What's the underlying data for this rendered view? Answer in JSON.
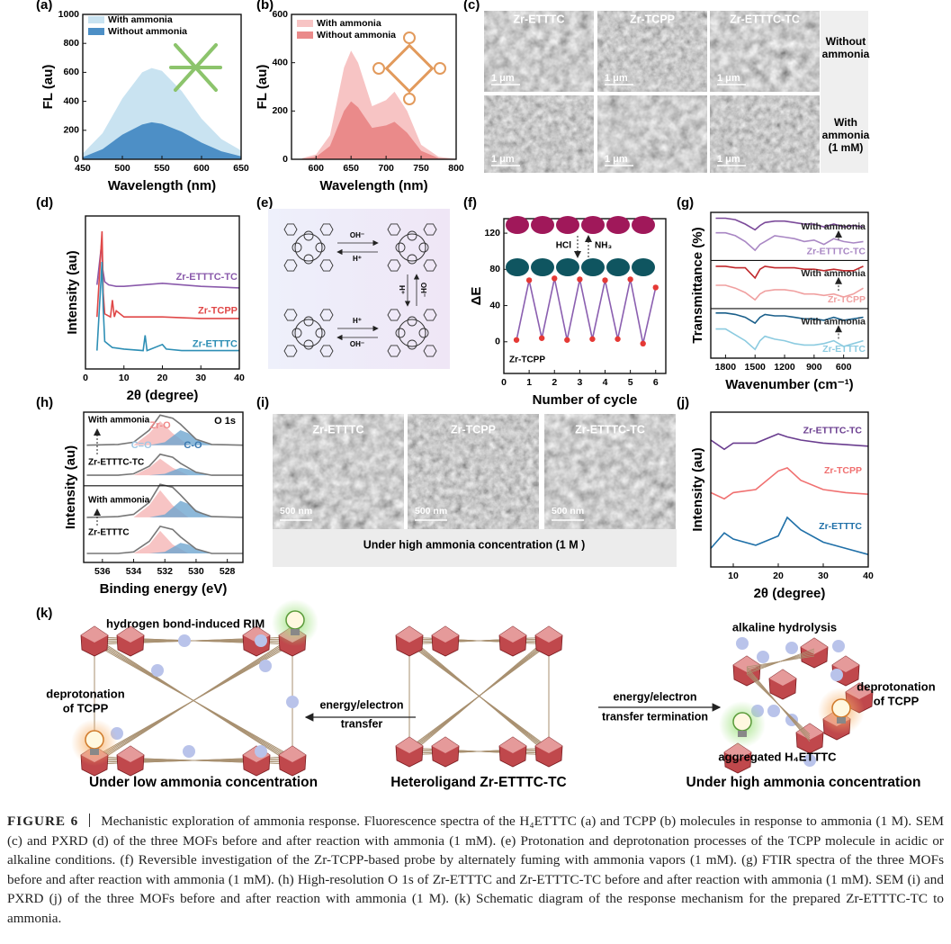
{
  "panel_labels": [
    "(a)",
    "(b)",
    "(c)",
    "(d)",
    "(e)",
    "(f)",
    "(g)",
    "(h)",
    "(i)",
    "(j)",
    "(k)"
  ],
  "chart_data": [
    {
      "type": "area",
      "xlabel": "Wavelength (nm)",
      "ylabel": "FL (au)",
      "legend": "upper left",
      "x": [
        450,
        475,
        500,
        525,
        537,
        550,
        575,
        600,
        625,
        650
      ],
      "xlim": [
        450,
        650
      ],
      "xticks": [
        450,
        500,
        550,
        600,
        650
      ],
      "ylim": [
        0,
        1000
      ],
      "yticks": [
        0,
        200,
        400,
        600,
        800,
        1000
      ],
      "series": [
        {
          "name": "With ammonia",
          "color": "#c9e3f1",
          "values": [
            40,
            180,
            420,
            600,
            630,
            610,
            470,
            280,
            140,
            60
          ]
        },
        {
          "name": "Without ammonia",
          "color": "#4d8fc6",
          "values": [
            15,
            70,
            170,
            240,
            255,
            245,
            190,
            115,
            55,
            20
          ]
        }
      ]
    },
    {
      "type": "area",
      "xlabel": "Wavelength (nm)",
      "ylabel": "FL (au)",
      "legend": "upper left",
      "x": [
        580,
        600,
        620,
        640,
        650,
        660,
        680,
        700,
        712,
        730,
        750,
        775,
        800
      ],
      "xlim": [
        565,
        800
      ],
      "xticks": [
        600,
        650,
        700,
        750,
        800
      ],
      "ylim": [
        0,
        600
      ],
      "yticks": [
        0,
        200,
        400,
        600
      ],
      "series": [
        {
          "name": "With ammonia",
          "color": "#f7c4c4",
          "values": [
            5,
            20,
            100,
            380,
            450,
            400,
            220,
            245,
            280,
            200,
            60,
            10,
            2
          ]
        },
        {
          "name": "Without ammonia",
          "color": "#ea8a8a",
          "values": [
            2,
            10,
            55,
            200,
            240,
            215,
            130,
            140,
            155,
            110,
            35,
            5,
            1
          ]
        }
      ]
    },
    {
      "type": "line",
      "xlabel": "2θ (degree)",
      "ylabel": "Intensity (au)",
      "xlim": [
        0,
        40
      ],
      "xticks": [
        0,
        10,
        20,
        30,
        40
      ],
      "ylim": [
        0,
        100
      ],
      "series": [
        {
          "name": "Zr-ETTTC-TC",
          "color": "#8a5aab",
          "x": [
            3,
            4.2,
            4.5,
            5,
            6,
            8,
            10,
            20,
            30,
            40
          ],
          "values": [
            55,
            82,
            65,
            57,
            55,
            54,
            54,
            56,
            54,
            53
          ]
        },
        {
          "name": "Zr-TCPP",
          "color": "#e04848",
          "x": [
            3,
            4.3,
            4.6,
            5,
            6.5,
            7,
            7.5,
            8,
            10,
            15,
            20,
            30,
            40
          ],
          "values": [
            34,
            90,
            50,
            36,
            34,
            45,
            34,
            38,
            34,
            34,
            34,
            33,
            33
          ]
        },
        {
          "name": "Zr-ETTTC",
          "color": "#2e8fb5",
          "x": [
            3,
            4.3,
            4.6,
            5,
            7,
            10,
            15,
            15.5,
            16,
            20,
            21,
            25,
            30,
            40
          ],
          "values": [
            12,
            70,
            40,
            18,
            14,
            13,
            12,
            22,
            12,
            16,
            13,
            12,
            12,
            12
          ]
        }
      ]
    },
    {
      "type": "line",
      "markers": true,
      "xlabel": "Number of cycle",
      "ylabel": "ΔE",
      "annotations": [
        "Zr-TCPP",
        "HCl",
        "NH₃"
      ],
      "x": [
        0.5,
        1,
        1.5,
        2,
        2.5,
        3,
        3.5,
        4,
        4.5,
        5,
        5.5,
        6
      ],
      "xlim": [
        0,
        6.4
      ],
      "xticks": [
        0,
        1,
        2,
        3,
        4,
        5,
        6
      ],
      "ylim": [
        -35,
        136
      ],
      "yticks": [
        0,
        40,
        80,
        120
      ],
      "series": [
        {
          "color": "#8b5fb0",
          "marker_color": "#e53935",
          "values": [
            2,
            68,
            4,
            70,
            2,
            69,
            3,
            68,
            3,
            69,
            -2,
            60
          ]
        }
      ]
    },
    {
      "type": "line",
      "xlabel": "Wavenumber (cm⁻¹)",
      "ylabel": "Transmittance (%)",
      "x": [
        1900,
        1800,
        1700,
        1600,
        1500,
        1450,
        1400,
        1300,
        1200,
        1100,
        1000,
        900,
        800,
        700,
        600,
        500,
        400
      ],
      "xlim": [
        1950,
        350
      ],
      "xticks": [
        1800,
        1500,
        1200,
        900,
        600
      ],
      "ylim": [
        0,
        100
      ],
      "series": [
        {
          "name": "With ammonia",
          "color": "#7b4a9a",
          "values": [
            96,
            96,
            95,
            92,
            88,
            91,
            93,
            94,
            94,
            93,
            92,
            92,
            90,
            92,
            90,
            91,
            90
          ]
        },
        {
          "name": "Zr-ETTTC-TC",
          "color": "#a987c4",
          "values": [
            86,
            86,
            84,
            80,
            74,
            78,
            80,
            84,
            83,
            82,
            80,
            81,
            78,
            82,
            80,
            79,
            80
          ]
        },
        {
          "name": "With ammonia",
          "color": "#c0282c",
          "values": [
            63,
            63,
            62,
            62,
            55,
            61,
            63,
            62,
            62,
            62,
            61,
            61,
            60,
            61,
            60,
            60,
            63
          ]
        },
        {
          "name": "Zr-TCPP",
          "color": "#f0a0a0",
          "values": [
            50,
            50,
            48,
            45,
            40,
            44,
            46,
            47,
            47,
            46,
            44,
            44,
            43,
            44,
            42,
            44,
            48
          ]
        },
        {
          "name": "With ammonia",
          "color": "#1a5f8a",
          "values": [
            31,
            31,
            30,
            28,
            24,
            28,
            30,
            29,
            29,
            28,
            27,
            27,
            26,
            28,
            26,
            27,
            28
          ]
        },
        {
          "name": "Zr-ETTTC",
          "color": "#8ccbe0",
          "values": [
            20,
            20,
            16,
            12,
            6,
            12,
            15,
            13,
            12,
            10,
            9,
            9,
            10,
            12,
            8,
            10,
            12
          ]
        }
      ]
    },
    {
      "type": "line",
      "xlabel": "Binding energy (eV)",
      "ylabel": "Intensity (au)",
      "annotations": [
        "With ammonia",
        "Zr-ETTTC-TC",
        "With ammonia",
        "Zr-ETTTC",
        "O 1s",
        "Zr-O",
        "C=O",
        "C-O"
      ],
      "x": [
        537,
        535,
        534,
        533,
        532.3,
        531.5,
        531,
        530,
        529,
        527
      ],
      "xlim": [
        537.2,
        527
      ],
      "xticks": [
        536,
        534,
        532,
        530,
        528
      ],
      "ylim": [
        0,
        100
      ],
      "series": [
        {
          "area": true,
          "color": "#f5b5b5",
          "x": [
            534,
            533,
            532.3,
            531.5,
            530.5
          ],
          "values": [
            78,
            86,
            94,
            86,
            78
          ]
        },
        {
          "area": true,
          "color": "#6fa6cf",
          "x": [
            533,
            532,
            531,
            530.5,
            530,
            529
          ],
          "values": [
            78,
            80,
            88,
            86,
            82,
            78
          ]
        },
        {
          "area": true,
          "color": "#f5b5b5",
          "x": [
            534,
            533,
            532.3,
            531.5,
            530.5
          ],
          "values": [
            58,
            63,
            69,
            63,
            58
          ]
        },
        {
          "area": true,
          "color": "#6fa6cf",
          "x": [
            533,
            532,
            531,
            530.5,
            530,
            529
          ],
          "values": [
            58,
            59,
            63,
            62,
            60,
            58
          ]
        },
        {
          "area": true,
          "color": "#f5b5b5",
          "x": [
            534,
            533,
            532.3,
            531.5,
            530.5
          ],
          "values": [
            30,
            38,
            48,
            38,
            30
          ]
        },
        {
          "area": true,
          "color": "#6fa6cf",
          "x": [
            533,
            532,
            531,
            530.5,
            530,
            529
          ],
          "values": [
            30,
            32,
            41,
            39,
            35,
            30
          ]
        },
        {
          "area": true,
          "color": "#f5b5b5",
          "x": [
            534,
            533,
            532.3,
            531.5,
            530.5
          ],
          "values": [
            6,
            12,
            21,
            12,
            6
          ]
        },
        {
          "area": true,
          "color": "#6fa6cf",
          "x": [
            533,
            532,
            531,
            530.5,
            530,
            529
          ],
          "values": [
            6,
            7,
            13,
            12,
            9,
            6
          ]
        },
        {
          "color": "#777777",
          "values": [
            78,
            78.5,
            80,
            88,
            98,
            96,
            92,
            82,
            78.5,
            78
          ]
        },
        {
          "color": "#777777",
          "values": [
            58,
            58,
            59,
            64,
            72,
            70,
            66,
            60,
            58,
            58
          ]
        },
        {
          "color": "#777777",
          "values": [
            30,
            30.5,
            32,
            40,
            52,
            50,
            45,
            34,
            30.5,
            30
          ]
        },
        {
          "color": "#777777",
          "values": [
            6,
            6,
            7,
            14,
            24,
            22,
            17,
            9,
            6,
            6
          ]
        }
      ]
    },
    {
      "type": "line",
      "xlabel": "2θ (degree)",
      "ylabel": "Intensity (au)",
      "x": [
        5,
        8,
        10,
        15,
        20,
        22,
        25,
        30,
        35,
        40
      ],
      "xlim": [
        5,
        40
      ],
      "xticks": [
        10,
        20,
        30,
        40
      ],
      "ylim": [
        0,
        100
      ],
      "series": [
        {
          "name": "Zr-ETTTC-TC",
          "color": "#6a3d8f",
          "values": [
            82,
            76,
            80,
            80,
            86,
            84,
            82,
            80,
            79,
            78
          ]
        },
        {
          "name": "Zr-TCPP",
          "color": "#f07070",
          "values": [
            48,
            44,
            48,
            50,
            62,
            64,
            56,
            50,
            48,
            47
          ]
        },
        {
          "name": "Zr-ETTTC",
          "color": "#2070a8",
          "values": [
            12,
            22,
            18,
            14,
            20,
            32,
            24,
            16,
            12,
            8
          ]
        }
      ]
    }
  ],
  "sem_c": {
    "columns": [
      "Zr-ETTTC",
      "Zr-TCPP",
      "Zr-ETTTC-TC"
    ],
    "rows": [
      [
        "Without",
        "ammonia"
      ],
      [
        "With",
        "ammonia",
        "(1 mM)"
      ]
    ],
    "scale_bars": [
      "1 μm",
      "1 μm",
      "1 μm",
      "1 μm",
      "1 μm",
      "1 μm"
    ]
  },
  "scheme_e": {
    "labels": [
      "OH⁻",
      "H⁺",
      "H⁺",
      "OH⁻",
      "H⁺",
      "OH⁻"
    ]
  },
  "sem_i": {
    "columns": [
      "Zr-ETTTC",
      "Zr-TCPP",
      "Zr-ETTTC-TC"
    ],
    "scale_bars": [
      "500 nm",
      "500 nm",
      "500 nm"
    ],
    "note": "Under high ammonia concentration (1 M )"
  },
  "scheme_k": {
    "left_top": "hydrogen bond-induced RIM",
    "left_side": [
      "deprotonation",
      "of TCPP"
    ],
    "arrow_left": [
      "energy/electron",
      "transfer"
    ],
    "arrow_right": [
      "energy/electron",
      "transfer termination"
    ],
    "right_top": "alkaline hydrolysis",
    "right_side": [
      "deprotonation",
      "of TCPP"
    ],
    "right_bottom": "aggregated H₄ETTTC",
    "captions": [
      "Under low ammonia concentration",
      "Heteroligand Zr-ETTTC-TC",
      "Under high ammonia concentration"
    ]
  },
  "caption": {
    "label": "FIGURE 6",
    "text": "Mechanistic exploration of ammonia response. Fluorescence spectra of the H₄ETTTC (a) and TCPP (b) molecules in response to ammonia (1 M). SEM (c) and PXRD (d) of the three MOFs before and after reaction with ammonia (1 mM). (e) Protonation and deprotonation processes of the TCPP molecule in acidic or alkaline conditions. (f) Reversible investigation of the Zr-TCPP-based probe by alternately fuming with ammonia vapors (1 mM). (g) FTIR spectra of the three MOFs before and after reaction with ammonia (1 mM). (h) High-resolution O 1s of Zr-ETTTC and Zr-ETTTC-TC before and after reaction with ammonia (1 mM). SEM (i) and PXRD (j) of the three MOFs before and after reaction with ammonia (1 M). (k) Schematic diagram of the response mechanism for the prepared Zr-ETTTC-TC to ammonia."
  }
}
